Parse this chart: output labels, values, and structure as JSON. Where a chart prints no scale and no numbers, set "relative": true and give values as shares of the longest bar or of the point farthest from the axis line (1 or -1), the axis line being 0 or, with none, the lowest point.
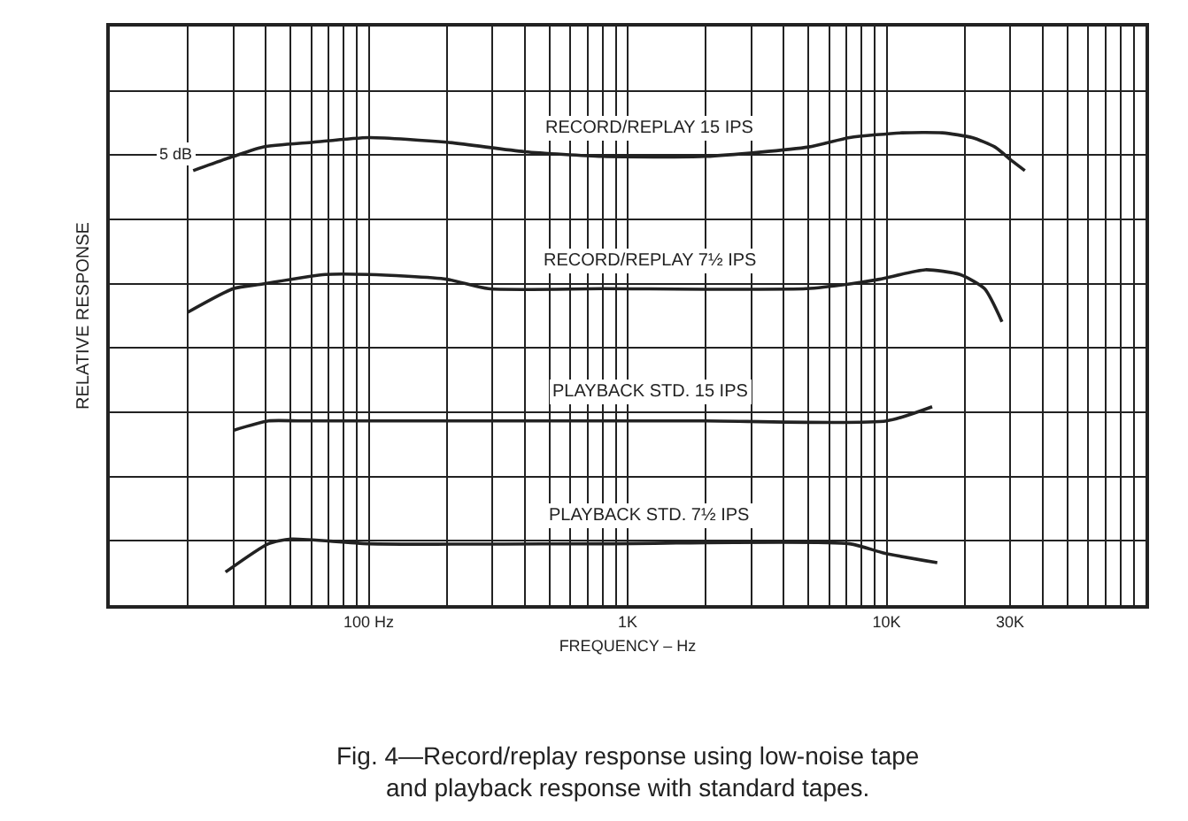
{
  "chart_data": {
    "type": "line",
    "relative": true,
    "xlabel": "FREQUENCY – Hz",
    "ylabel": "RELATIVE RESPONSE",
    "xlim": [
      10,
      100000
    ],
    "log": "x",
    "grid": true,
    "marker": "none",
    "line_style": "solid",
    "xticks": [
      {
        "value": 20,
        "label": null
      },
      {
        "value": 30,
        "label": null
      },
      {
        "value": 40,
        "label": null
      },
      {
        "value": 50,
        "label": null
      },
      {
        "value": 60,
        "label": null
      },
      {
        "value": 70,
        "label": null
      },
      {
        "value": 80,
        "label": null
      },
      {
        "value": 90,
        "label": null
      },
      {
        "value": 100,
        "label": "100 Hz"
      },
      {
        "value": 200,
        "label": null
      },
      {
        "value": 300,
        "label": null
      },
      {
        "value": 400,
        "label": null
      },
      {
        "value": 500,
        "label": null
      },
      {
        "value": 600,
        "label": null
      },
      {
        "value": 700,
        "label": null
      },
      {
        "value": 800,
        "label": null
      },
      {
        "value": 900,
        "label": null
      },
      {
        "value": 1000,
        "label": "1K"
      },
      {
        "value": 2000,
        "label": null
      },
      {
        "value": 3000,
        "label": null
      },
      {
        "value": 4000,
        "label": null
      },
      {
        "value": 5000,
        "label": null
      },
      {
        "value": 6000,
        "label": null
      },
      {
        "value": 7000,
        "label": null
      },
      {
        "value": 8000,
        "label": null
      },
      {
        "value": 9000,
        "label": null
      },
      {
        "value": 10000,
        "label": "10K"
      },
      {
        "value": 20000,
        "label": null
      },
      {
        "value": 30000,
        "label": "30K"
      },
      {
        "value": 40000,
        "label": null
      },
      {
        "value": 50000,
        "label": null
      },
      {
        "value": 60000,
        "label": null
      },
      {
        "value": 70000,
        "label": null
      },
      {
        "value": 80000,
        "label": null
      },
      {
        "value": 90000,
        "label": null
      }
    ],
    "series": [
      {
        "name": "RECORD/REPLAY 15 IPS",
        "color": "#222222",
        "x": [
          21,
          30,
          39,
          61,
          100,
          200,
          400,
          800,
          2000,
          5000,
          7200,
          11500,
          16400,
          21400,
          26200,
          30600,
          34200
        ],
        "values": [
          0.92,
          0.95,
          0.97,
          0.98,
          0.99,
          0.98,
          0.96,
          0.95,
          0.95,
          0.97,
          0.99,
          1.0,
          1.0,
          0.99,
          0.97,
          0.94,
          0.92
        ]
      },
      {
        "name": "RECORD/REPLAY 7½ IPS",
        "color": "#222222",
        "x": [
          20,
          30,
          39,
          68,
          100,
          200,
          290,
          800,
          4900,
          7200,
          9400,
          14100,
          19200,
          23900,
          27900
        ],
        "values": [
          0.62,
          0.67,
          0.68,
          0.7,
          0.7,
          0.69,
          0.67,
          0.67,
          0.67,
          0.68,
          0.69,
          0.71,
          0.7,
          0.67,
          0.6
        ]
      },
      {
        "name": "PLAYBACK STD. 15 IPS",
        "color": "#222222",
        "x": [
          30,
          41,
          55,
          100,
          800,
          2000,
          10000,
          15000
        ],
        "values": [
          0.37,
          0.39,
          0.39,
          0.39,
          0.39,
          0.39,
          0.39,
          0.42
        ]
      },
      {
        "name": "PLAYBACK STD. 7½ IPS",
        "color": "#222222",
        "x": [
          28,
          41,
          50,
          100,
          800,
          7200,
          9800,
          15700
        ],
        "values": [
          0.07,
          0.13,
          0.14,
          0.13,
          0.13,
          0.13,
          0.11,
          0.09
        ]
      }
    ],
    "annotations": [
      "5 dB",
      "Fig. 4—Record/replay response using low-noise tape and playback response with standard tapes."
    ]
  }
}
